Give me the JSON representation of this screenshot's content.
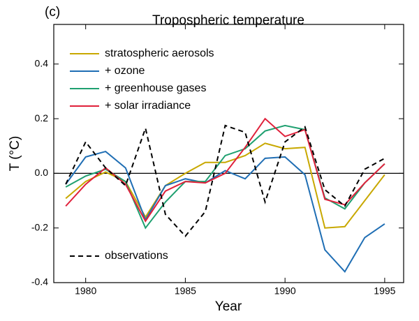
{
  "chart_data": {
    "type": "line",
    "panel_label": "(c)",
    "title": "Tropospheric temperature",
    "x_label": "Year",
    "y_label": "T (°C)",
    "x": [
      1979,
      1980,
      1981,
      1982,
      1983,
      1984,
      1985,
      1986,
      1987,
      1988,
      1989,
      1990,
      1991,
      1992,
      1993,
      1994,
      1995
    ],
    "xlim": [
      1978.4,
      1995.95
    ],
    "xticks": [
      1980,
      1985,
      1990,
      1995
    ],
    "ylim": [
      -0.4,
      0.545
    ],
    "yticks": [
      0.4,
      0.2,
      {
        "value": 0,
        "label": "0.0"
      },
      -0.2,
      -0.4
    ],
    "zero_line": true,
    "series": [
      {
        "name": "stratospheric  aerosols",
        "color": "#c8a800",
        "dashed": false,
        "legend": "top-left",
        "values": [
          -0.092,
          -0.03,
          0.005,
          -0.03,
          -0.16,
          -0.045,
          0,
          0.04,
          0.04,
          0.065,
          0.11,
          0.09,
          0.095,
          -0.2,
          -0.195,
          -0.1,
          -0.005
        ]
      },
      {
        "name": "+ ozone",
        "color": "#1f6eb4",
        "dashed": false,
        "legend": "top-left",
        "values": [
          -0.04,
          0.06,
          0.08,
          0.02,
          -0.17,
          -0.045,
          -0.02,
          -0.035,
          0.01,
          -0.02,
          0.055,
          0.06,
          -0.005,
          -0.28,
          -0.36,
          -0.235,
          -0.185
        ]
      },
      {
        "name": "+ greenhouse gases",
        "color": "#1fa070",
        "dashed": false,
        "legend": "top-left",
        "values": [
          -0.05,
          -0.01,
          0.015,
          -0.03,
          -0.2,
          -0.105,
          -0.03,
          -0.03,
          0.065,
          0.09,
          0.155,
          0.175,
          0.16,
          -0.09,
          -0.13,
          -0.035,
          0.035
        ]
      },
      {
        "name": "+ solar irradiance",
        "color": "#e0203a",
        "dashed": false,
        "legend": "top-left",
        "values": [
          -0.12,
          -0.04,
          0.02,
          -0.04,
          -0.175,
          -0.065,
          -0.03,
          -0.035,
          0,
          0.095,
          0.2,
          0.135,
          0.16,
          -0.095,
          -0.115,
          -0.035,
          0.035
        ]
      },
      {
        "name": "observations",
        "color": "#000000",
        "dashed": true,
        "legend": "bottom-left",
        "values": [
          -0.04,
          0.115,
          0.02,
          -0.045,
          0.165,
          -0.15,
          -0.23,
          -0.14,
          0.175,
          0.15,
          -0.105,
          0.115,
          0.17,
          -0.06,
          -0.12,
          0.015,
          0.055
        ]
      }
    ]
  }
}
